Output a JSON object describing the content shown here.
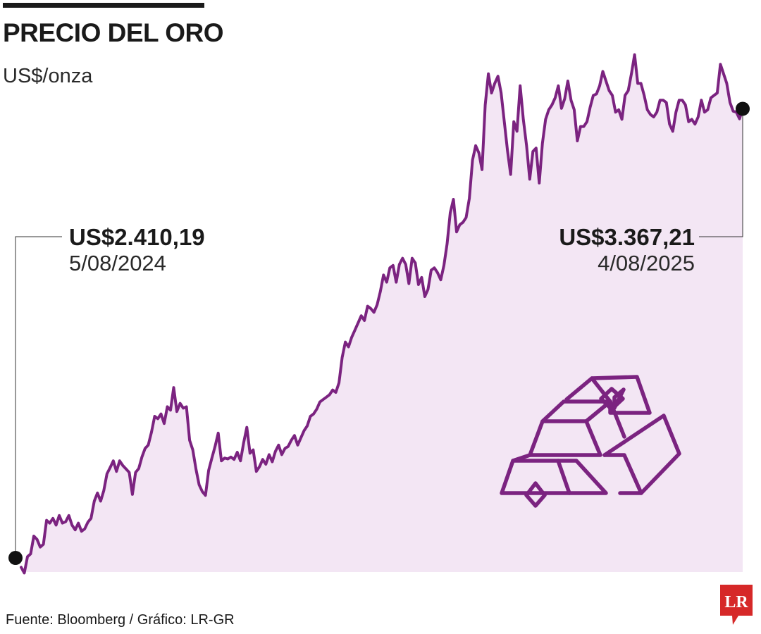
{
  "header": {
    "title": "PRECIO DEL ORO",
    "subtitle": "US$/onza"
  },
  "annotations": {
    "start": {
      "value": "US$2.410,19",
      "date": "5/08/2024"
    },
    "end": {
      "value": "US$3.367,21",
      "date": "4/08/2025"
    }
  },
  "footer": {
    "source": "Fuente: Bloomberg / Gráfico: LR-GR",
    "logo_text": "LR"
  },
  "colors": {
    "line": "#7b2380",
    "fill": "#f3e6f4",
    "logo": "#d62828",
    "text": "#1a1a1a"
  },
  "chart_data": {
    "type": "area",
    "title": "PRECIO DEL ORO",
    "ylabel": "US$/onza",
    "xlabel": "",
    "x_start": "5/08/2024",
    "x_end": "4/08/2025",
    "ylim": [
      2400,
      3500
    ],
    "grid": false,
    "series": [
      {
        "name": "Oro",
        "values": [
          2410,
          2398,
          2432,
          2438,
          2475,
          2468,
          2452,
          2458,
          2508,
          2502,
          2512,
          2498,
          2518,
          2502,
          2505,
          2518,
          2498,
          2488,
          2502,
          2485,
          2490,
          2504,
          2512,
          2548,
          2565,
          2548,
          2570,
          2605,
          2618,
          2632,
          2610,
          2632,
          2622,
          2615,
          2608,
          2562,
          2608,
          2616,
          2640,
          2658,
          2665,
          2692,
          2725,
          2720,
          2730,
          2710,
          2745,
          2738,
          2785,
          2735,
          2752,
          2742,
          2745,
          2675,
          2655,
          2615,
          2582,
          2568,
          2560,
          2612,
          2638,
          2662,
          2690,
          2632,
          2638,
          2636,
          2640,
          2635,
          2650,
          2632,
          2670,
          2702,
          2648,
          2655,
          2610,
          2620,
          2635,
          2625,
          2645,
          2630,
          2652,
          2665,
          2645,
          2658,
          2662,
          2675,
          2685,
          2665,
          2680,
          2695,
          2705,
          2725,
          2730,
          2740,
          2755,
          2760,
          2765,
          2770,
          2780,
          2775,
          2795,
          2848,
          2880,
          2870,
          2890,
          2905,
          2920,
          2935,
          2925,
          2955,
          2950,
          2942,
          2958,
          2985,
          3020,
          3005,
          3035,
          3040,
          3005,
          3042,
          3055,
          3042,
          3002,
          3055,
          3045,
          3000,
          3015,
          2975,
          2990,
          3030,
          3035,
          3025,
          3010,
          3040,
          3085,
          3150,
          3178,
          3110,
          3125,
          3130,
          3140,
          3180,
          3260,
          3290,
          3275,
          3240,
          3375,
          3440,
          3400,
          3420,
          3435,
          3400,
          3340,
          3280,
          3230,
          3340,
          3320,
          3415,
          3345,
          3290,
          3220,
          3278,
          3285,
          3212,
          3295,
          3345,
          3365,
          3375,
          3390,
          3415,
          3368,
          3388,
          3425,
          3385,
          3365,
          3300,
          3330,
          3330,
          3340,
          3370,
          3395,
          3398,
          3415,
          3445,
          3425,
          3405,
          3395,
          3360,
          3365,
          3345,
          3395,
          3405,
          3440,
          3480,
          3420,
          3420,
          3395,
          3365,
          3355,
          3350,
          3360,
          3385,
          3385,
          3380,
          3335,
          3320,
          3360,
          3385,
          3385,
          3375,
          3340,
          3345,
          3335,
          3350,
          3385,
          3360,
          3365,
          3390,
          3395,
          3400,
          3460,
          3440,
          3420,
          3380,
          3362,
          3360,
          3346,
          3367
        ]
      }
    ]
  }
}
